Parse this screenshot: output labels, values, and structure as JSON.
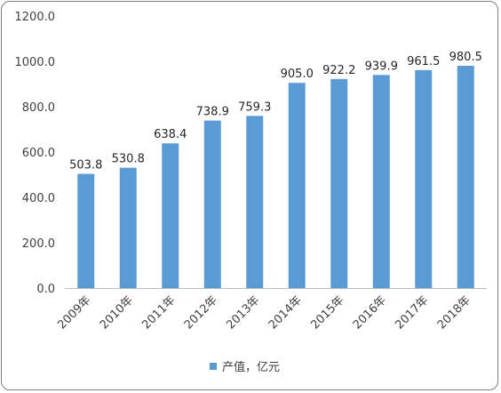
{
  "chart_data": {
    "type": "bar",
    "categories": [
      "2009年",
      "2010年",
      "2011年",
      "2012年",
      "2013年",
      "2014年",
      "2015年",
      "2016年",
      "2017年",
      "2018年"
    ],
    "series": [
      {
        "name": "产值，亿元",
        "values": [
          503.8,
          530.8,
          638.4,
          738.9,
          759.3,
          905.0,
          922.2,
          939.9,
          961.5,
          980.5
        ]
      }
    ],
    "data_labels": [
      "503.8",
      "530.8",
      "638.4",
      "738.9",
      "759.3",
      "905.0",
      "922.2",
      "939.9",
      "961.5",
      "980.5"
    ],
    "yticks": [
      "0.0",
      "200.0",
      "400.0",
      "600.0",
      "800.0",
      "1000.0",
      "1200.0"
    ],
    "ylim": [
      0,
      1200
    ],
    "grid": false,
    "legend": "bottom",
    "bar_color": "#5b9bd5"
  }
}
